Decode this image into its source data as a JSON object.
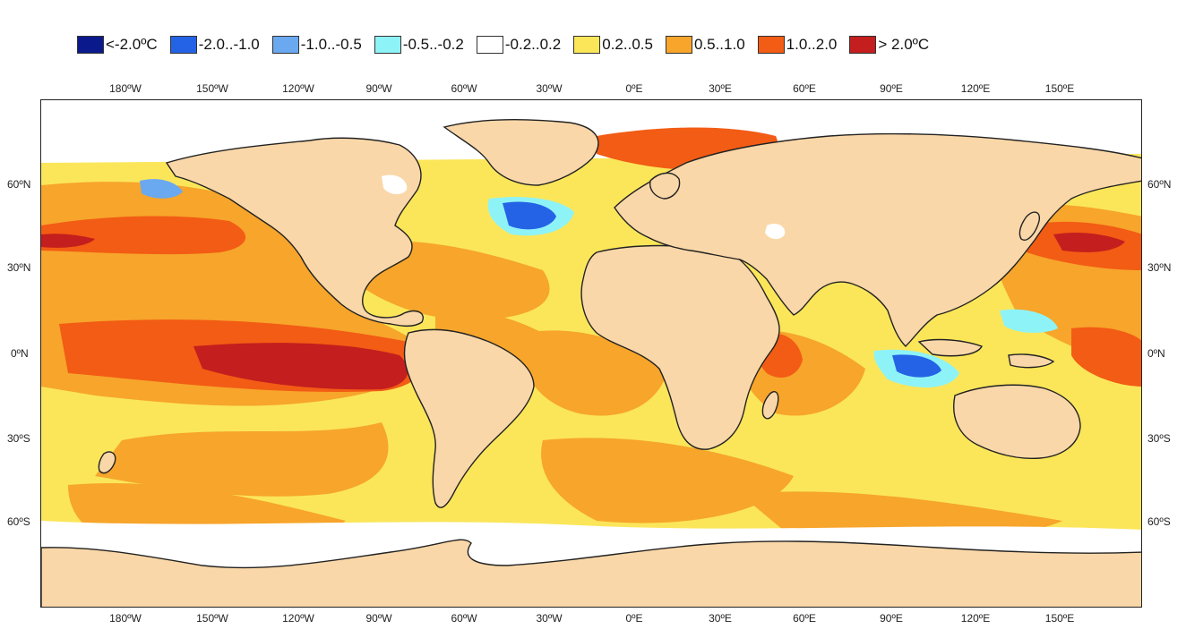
{
  "legend": [
    {
      "label": "<-2.0ºC",
      "color": "#0a1a8c"
    },
    {
      "label": "-2.0..-1.0",
      "color": "#2563e6"
    },
    {
      "label": "-1.0..-0.5",
      "color": "#6aa8f0"
    },
    {
      "label": "-0.5..-0.2",
      "color": "#8ef3f7"
    },
    {
      "label": "-0.2..0.2",
      "color": "#ffffff"
    },
    {
      "label": "0.2..0.5",
      "color": "#fbe65a"
    },
    {
      "label": "0.5..1.0",
      "color": "#f7a52b"
    },
    {
      "label": "1.0..2.0",
      "color": "#f25c14"
    },
    {
      "label": "> 2.0ºC",
      "color": "#c41e1e"
    }
  ],
  "longitude_labels": [
    "180ºW",
    "150ºW",
    "120ºW",
    "90ºW",
    "60ºW",
    "30ºW",
    "0ºE",
    "30ºE",
    "60ºE",
    "90ºE",
    "120ºE",
    "150ºE"
  ],
  "latitude_labels": [
    "60ºN",
    "30ºN",
    "0ºN",
    "30ºS",
    "60ºS"
  ],
  "colors": {
    "land": "#fad7a8",
    "coast": "#222222"
  }
}
